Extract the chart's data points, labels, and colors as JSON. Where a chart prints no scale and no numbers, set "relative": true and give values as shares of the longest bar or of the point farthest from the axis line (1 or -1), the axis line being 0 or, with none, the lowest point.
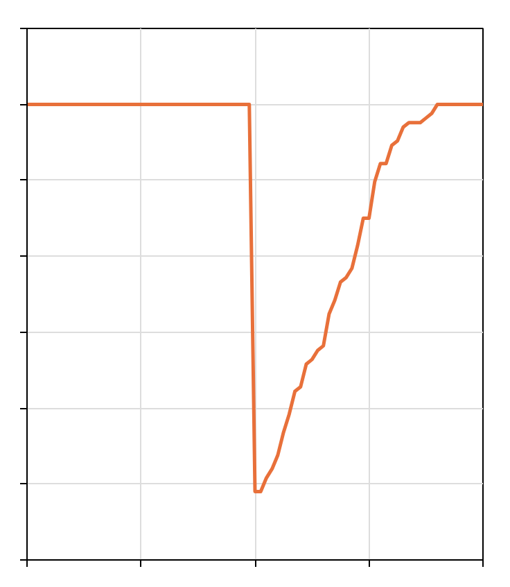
{
  "chart_data": {
    "type": "line",
    "relative": true,
    "grid": true,
    "categories": [
      null,
      null,
      null,
      null,
      null,
      null,
      null,
      null,
      null,
      null,
      null,
      null,
      null,
      null,
      null,
      null,
      null,
      null,
      null,
      null,
      null,
      null,
      null,
      null,
      null,
      null,
      null,
      null,
      null,
      null,
      null,
      null,
      null,
      null,
      null,
      null,
      null,
      null,
      null,
      null,
      null,
      null,
      null,
      null,
      null,
      null,
      null,
      null,
      null,
      null,
      null,
      null,
      null,
      null,
      null,
      null,
      null,
      null,
      null,
      null,
      null,
      null,
      null,
      null,
      null,
      null,
      null,
      null,
      null,
      null,
      null,
      null,
      null,
      null,
      null,
      null,
      null,
      null,
      null,
      null,
      null
    ],
    "series": [
      {
        "color": "#e8703a",
        "values": [
          1,
          1,
          1,
          1,
          1,
          1,
          1,
          1,
          1,
          1,
          1,
          1,
          1,
          1,
          1,
          1,
          1,
          1,
          1,
          1,
          1,
          1,
          1,
          1,
          1,
          1,
          1,
          1,
          1,
          1,
          1,
          1,
          1,
          1,
          1,
          1,
          1,
          1,
          1,
          1,
          0.15,
          0.15,
          0.18,
          0.2,
          0.23,
          0.28,
          0.32,
          0.37,
          0.38,
          0.43,
          0.44,
          0.46,
          0.47,
          0.54,
          0.57,
          0.61,
          0.62,
          0.64,
          0.69,
          0.75,
          0.75,
          0.83,
          0.87,
          0.87,
          0.91,
          0.92,
          0.95,
          0.96,
          0.96,
          0.96,
          0.97,
          0.98,
          1,
          1,
          1,
          1,
          1,
          1,
          1,
          1,
          1
        ]
      }
    ]
  }
}
